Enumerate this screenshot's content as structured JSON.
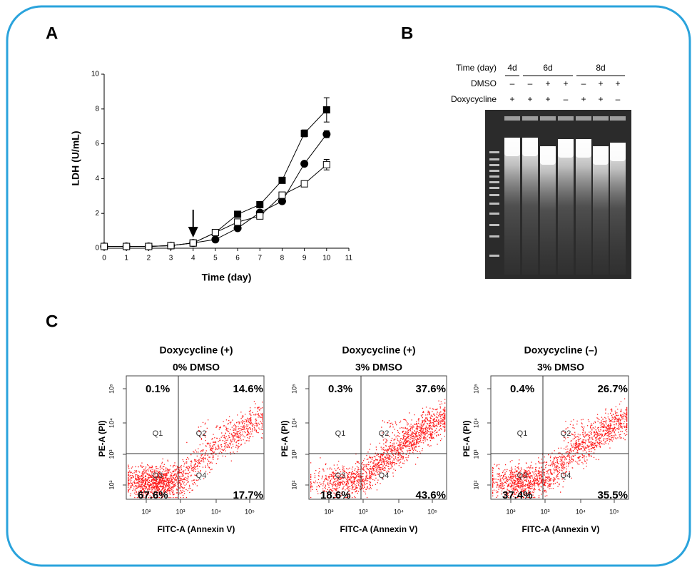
{
  "panel_labels": [
    "A",
    "B",
    "C"
  ],
  "chart_data": {
    "type": "line",
    "x": [
      0,
      1,
      2,
      3,
      4,
      5,
      6,
      7,
      8,
      9,
      10
    ],
    "series": [
      {
        "color": "#000000",
        "marker": "square",
        "filled": true,
        "values": [
          0.1,
          0.1,
          0.1,
          0.15,
          0.3,
          0.9,
          1.95,
          2.5,
          3.9,
          6.6,
          7.95
        ],
        "errors": [
          null,
          null,
          null,
          null,
          null,
          null,
          null,
          null,
          null,
          0.2,
          0.7
        ]
      },
      {
        "color": "#000000",
        "marker": "circle",
        "filled": true,
        "values": [
          0.1,
          0.1,
          0.1,
          0.15,
          0.3,
          0.5,
          1.15,
          2.05,
          2.7,
          4.85,
          6.55
        ],
        "errors": [
          null,
          null,
          null,
          null,
          null,
          null,
          null,
          null,
          null,
          null,
          0.2
        ]
      },
      {
        "color": "#000000",
        "marker": "square",
        "filled": false,
        "values": [
          0.1,
          0.1,
          0.1,
          0.15,
          0.3,
          0.9,
          1.5,
          1.85,
          3.05,
          3.7,
          4.8
        ],
        "errors": [
          null,
          null,
          null,
          null,
          null,
          null,
          null,
          null,
          null,
          null,
          0.3
        ]
      }
    ],
    "xlim": [
      0,
      11
    ],
    "xticks": [
      0,
      1,
      2,
      3,
      4,
      5,
      6,
      7,
      8,
      9,
      10,
      11
    ],
    "ylim": [
      0,
      10
    ],
    "yticks": [
      0,
      2,
      4,
      6,
      8,
      10
    ],
    "xlabel": "Time (day)",
    "ylabel": "LDH (U/mL)",
    "arrow_at": 4
  },
  "gel": {
    "row_labels": [
      "Time (day)",
      "DMSO",
      "Doxycycline"
    ],
    "groups": [
      {
        "label": "4d",
        "lanes": 1
      },
      {
        "label": "6d",
        "lanes": 3
      },
      {
        "label": "8d",
        "lanes": 3
      }
    ],
    "dmso": [
      "–",
      "–",
      "+",
      "+",
      "–",
      "+",
      "+"
    ],
    "doxycycline": [
      "+",
      "+",
      "+",
      "–",
      "+",
      "+",
      "–"
    ]
  },
  "flow": {
    "y_label": "PE-A (PI)",
    "x_label": "FITC-A (Annexin V)",
    "ticks": [
      "10²",
      "10³",
      "10⁴",
      "10⁵"
    ],
    "quadrant_labels": [
      "Q1",
      "Q2",
      "Q3",
      "Q4"
    ],
    "plots": [
      {
        "title": [
          "Doxycycline (+)",
          "0% DMSO"
        ],
        "percents": [
          "0.1%",
          "14.6%",
          "67.6%",
          "17.7%"
        ]
      },
      {
        "title": [
          "Doxycycline (+)",
          "3% DMSO"
        ],
        "percents": [
          "0.3%",
          "37.6%",
          "18.6%",
          "43.6%"
        ]
      },
      {
        "title": [
          "Doxycycline (–)",
          "3% DMSO"
        ],
        "percents": [
          "0.4%",
          "26.7%",
          "37.4%",
          "35.5%"
        ]
      }
    ]
  }
}
